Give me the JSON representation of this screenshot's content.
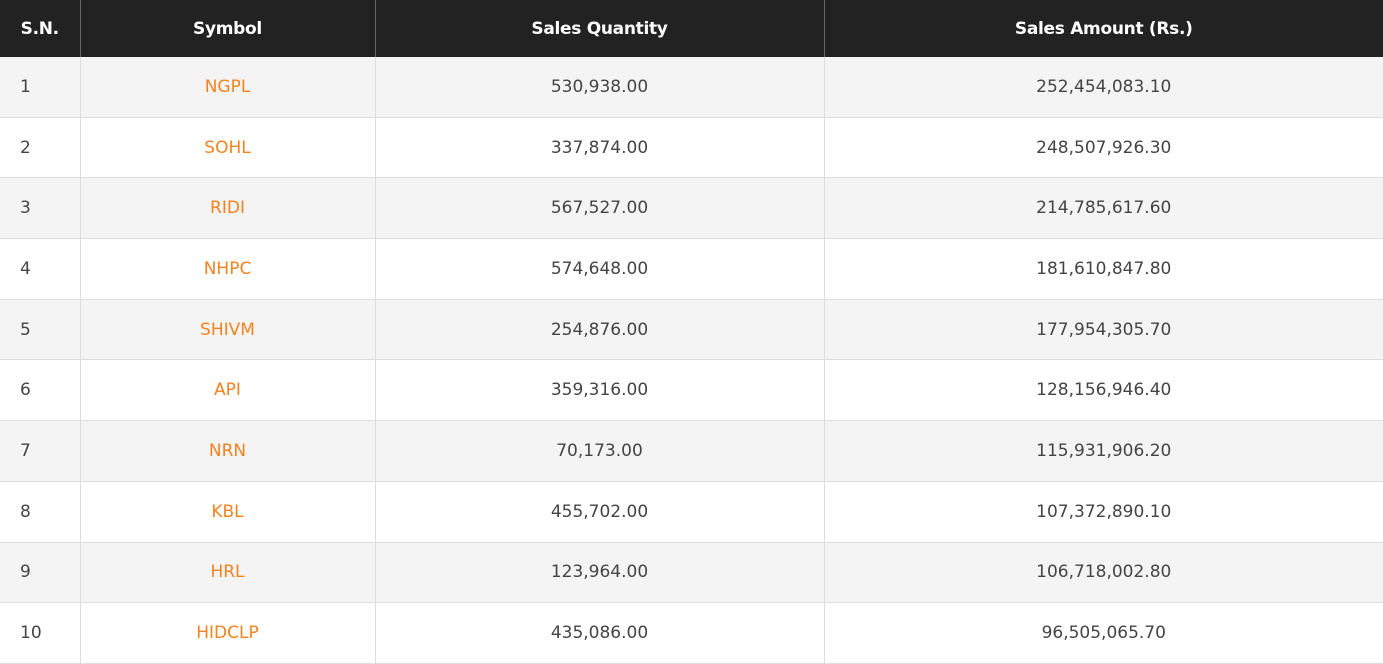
{
  "table": {
    "header": [
      "S.N.",
      "Symbol",
      "Sales Quantity",
      "Sales Amount (Rs.)"
    ],
    "rows": [
      [
        "1",
        "NGPL",
        "530,938.00",
        "252,454,083.10"
      ],
      [
        "2",
        "SOHL",
        "337,874.00",
        "248,507,926.30"
      ],
      [
        "3",
        "RIDI",
        "567,527.00",
        "214,785,617.60"
      ],
      [
        "4",
        "NHPC",
        "574,648.00",
        "181,610,847.80"
      ],
      [
        "5",
        "SHIVM",
        "254,876.00",
        "177,954,305.70"
      ],
      [
        "6",
        "API",
        "359,316.00",
        "128,156,946.40"
      ],
      [
        "7",
        "NRN",
        "70,173.00",
        "115,931,906.20"
      ],
      [
        "8",
        "KBL",
        "455,702.00",
        "107,372,890.10"
      ],
      [
        "9",
        "HRL",
        "123,964.00",
        "106,718,002.80"
      ],
      [
        "10",
        "HIDCLP",
        "435,086.00",
        "96,505,065.70"
      ]
    ]
  }
}
